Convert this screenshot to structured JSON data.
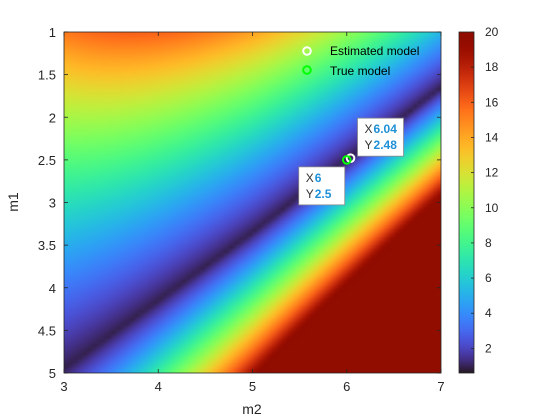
{
  "chart_data": {
    "type": "heatmap",
    "xlabel": "m2",
    "ylabel": "m1",
    "xlim": [
      3,
      7
    ],
    "ylim": [
      1,
      5
    ],
    "y_reversed": true,
    "x_ticks": [
      "3",
      "4",
      "5",
      "6",
      "7"
    ],
    "y_ticks": [
      "1",
      "1.5",
      "2",
      "2.5",
      "3",
      "3.5",
      "4",
      "4.5",
      "5"
    ],
    "colormap": "turbo",
    "colorbar": {
      "range": [
        0.6,
        20
      ],
      "ticks": [
        "2",
        "4",
        "6",
        "8",
        "10",
        "12",
        "14",
        "16",
        "18",
        "20"
      ]
    },
    "surface_valley_points": [
      {
        "x": 3.0,
        "y": 4.95
      },
      {
        "x": 4.0,
        "y": 4.15
      },
      {
        "x": 5.0,
        "y": 3.35
      },
      {
        "x": 6.0,
        "y": 2.5
      },
      {
        "x": 7.0,
        "y": 1.65
      }
    ],
    "legend": {
      "position": "top-right",
      "entries": [
        {
          "name": "Estimated model",
          "color": "#ffffff",
          "marker": "circle"
        },
        {
          "name": "True model",
          "color": "#00ff00",
          "marker": "circle"
        }
      ]
    },
    "markers": [
      {
        "name": "Estimated model",
        "x": 6.04,
        "y": 2.48,
        "color": "#ffffff"
      },
      {
        "name": "True model",
        "x": 6.0,
        "y": 2.5,
        "color": "#00ff00"
      }
    ],
    "datatips": [
      {
        "x_key": "X",
        "x_value": "6.04",
        "y_key": "Y",
        "y_value": "2.48",
        "anchor": "upper-right"
      },
      {
        "x_key": "X",
        "x_value": "6",
        "y_key": "Y",
        "y_value": "2.5",
        "anchor": "lower-left"
      }
    ]
  }
}
